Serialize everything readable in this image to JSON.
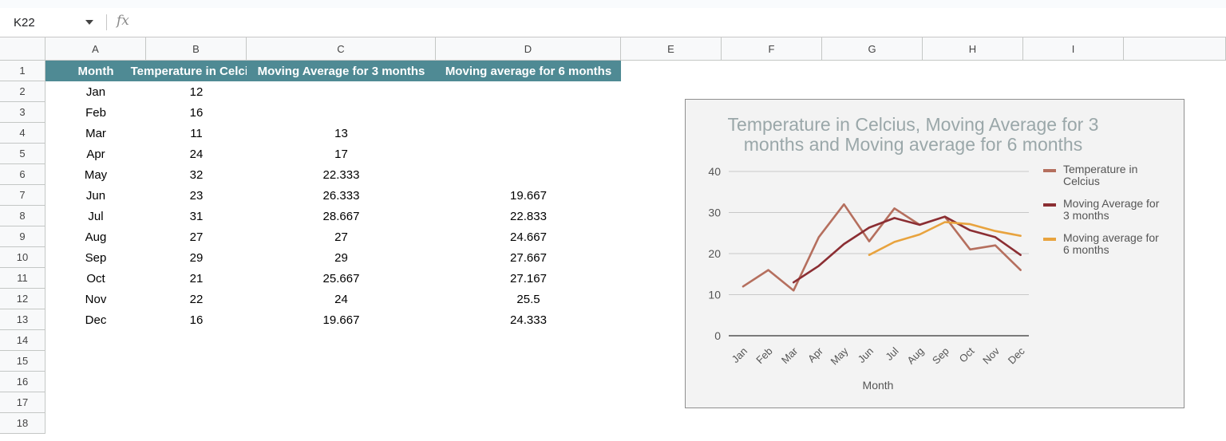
{
  "toolbar": {
    "name_box": "K22",
    "fx_label": "fx"
  },
  "columns": [
    "A",
    "B",
    "C",
    "D",
    "E",
    "F",
    "G",
    "H",
    "I"
  ],
  "rows": [
    "1",
    "2",
    "3",
    "4",
    "5",
    "6",
    "7",
    "8",
    "9",
    "10",
    "11",
    "12",
    "13",
    "14",
    "15",
    "16",
    "17",
    "18"
  ],
  "table": {
    "headers": [
      "Month",
      "Temperature in Celcius",
      "Moving Average for 3 months",
      "Moving average for 6 months"
    ],
    "rows": [
      [
        "Jan",
        "12",
        "",
        ""
      ],
      [
        "Feb",
        "16",
        "",
        ""
      ],
      [
        "Mar",
        "11",
        "13",
        ""
      ],
      [
        "Apr",
        "24",
        "17",
        ""
      ],
      [
        "May",
        "32",
        "22.333",
        ""
      ],
      [
        "Jun",
        "23",
        "26.333",
        "19.667"
      ],
      [
        "Jul",
        "31",
        "28.667",
        "22.833"
      ],
      [
        "Aug",
        "27",
        "27",
        "24.667"
      ],
      [
        "Sep",
        "29",
        "29",
        "27.667"
      ],
      [
        "Oct",
        "21",
        "25.667",
        "27.167"
      ],
      [
        "Nov",
        "22",
        "24",
        "25.5"
      ],
      [
        "Dec",
        "16",
        "19.667",
        "24.333"
      ]
    ]
  },
  "chart_data": {
    "type": "line",
    "title_lines": [
      "Temperature in Celcius, Moving Average for 3",
      "months and Moving average for 6 months"
    ],
    "xlabel": "Month",
    "ylabel": "",
    "categories": [
      "Jan",
      "Feb",
      "Mar",
      "Apr",
      "May",
      "Jun",
      "Jul",
      "Aug",
      "Sep",
      "Oct",
      "Nov",
      "Dec"
    ],
    "ylim": [
      0,
      40
    ],
    "yticks": [
      0,
      10,
      20,
      30,
      40
    ],
    "grid": true,
    "legend_position": "right",
    "series": [
      {
        "name": "Temperature in Celcius",
        "legend_lines": [
          "Temperature in",
          "Celcius"
        ],
        "color": "#b56f5e",
        "values": [
          12,
          16,
          11,
          24,
          32,
          23,
          31,
          27,
          29,
          21,
          22,
          16
        ]
      },
      {
        "name": "Moving Average for 3 months",
        "legend_lines": [
          "Moving Average for",
          "3 months"
        ],
        "color": "#8b2e33",
        "values": [
          null,
          null,
          13,
          17,
          22.333,
          26.333,
          28.667,
          27,
          29,
          25.667,
          24,
          19.667
        ]
      },
      {
        "name": "Moving average for 6 months",
        "legend_lines": [
          "Moving average for",
          "6 months"
        ],
        "color": "#e8a33e",
        "values": [
          null,
          null,
          null,
          null,
          null,
          19.667,
          22.833,
          24.667,
          27.667,
          27.167,
          25.5,
          24.333
        ]
      }
    ]
  }
}
